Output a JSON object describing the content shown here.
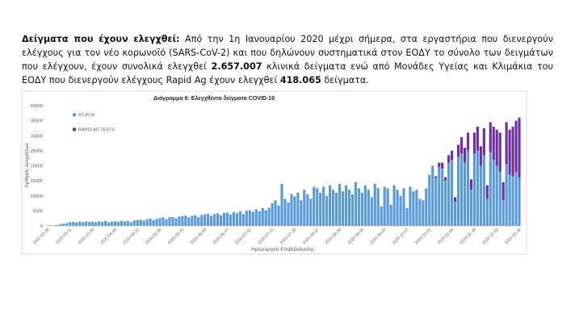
{
  "paragraph": {
    "runs": [
      {
        "text": "Δείγματα που έχουν ελεγχθεί:",
        "bold": true
      },
      {
        "text": " Από την 1η Ιανουαρίου 2020 μέχρι σήμερα, στα εργαστήρια που διενεργούν ελέγχους για τον νέο κορωνοϊό (SARS-CoV-2) και που δηλώνουν συστηματικά στον ΕΟΔΥ το σύνολο των δειγμάτων που ελέγχουν, έχουν συνολικά ελεγχθεί ",
        "bold": false
      },
      {
        "text": "2.657.007",
        "bold": true
      },
      {
        "text": " κλινικά δείγματα ενώ από Μονάδες Υγείας και Κλιμάκια του ΕΟΔΥ που διενεργούν ελέγχους Rapid Ag έχουν ελεγχθεί ",
        "bold": false
      },
      {
        "text": "418.065",
        "bold": true
      },
      {
        "text": " δείγματα.",
        "bold": false
      }
    ]
  },
  "chart_data": {
    "type": "stacked_bar",
    "title": "Διάγραμμα 6: Ελεγχθέντα δείγματα COVID-19",
    "x_label": "Ημερομηνία Επιβεβαίωσης",
    "y_label": "Αριθμός Δειγμάτων",
    "ylim": [
      0,
      40000
    ],
    "yticks": [
      0,
      5000,
      10000,
      15000,
      20000,
      25000,
      30000,
      35000,
      40000
    ],
    "grid": false,
    "legend": "upper-left",
    "categories": [
      "2020-02-26",
      null,
      null,
      null,
      null,
      null,
      null,
      "2020-03-11",
      null,
      null,
      null,
      null,
      null,
      null,
      "2020-03-25",
      null,
      null,
      null,
      null,
      null,
      null,
      "2020-04-08",
      null,
      null,
      null,
      null,
      null,
      null,
      "2020-04-22",
      null,
      null,
      null,
      null,
      null,
      null,
      "2020-05-06",
      null,
      null,
      null,
      null,
      null,
      null,
      "2020-05-20",
      null,
      null,
      null,
      null,
      null,
      null,
      "2020-06-03",
      null,
      null,
      null,
      null,
      null,
      null,
      "2020-06-17",
      null,
      null,
      null,
      null,
      null,
      null,
      "2020-07-01",
      null,
      null,
      null,
      null,
      null,
      null,
      "2020-07-15",
      null,
      null,
      null,
      null,
      null,
      null,
      "2020-07-29",
      null,
      null,
      null,
      null,
      null,
      null,
      "2020-08-12",
      null,
      null,
      null,
      null,
      null,
      null,
      "2020-08-26",
      null,
      null,
      null,
      null,
      null,
      null,
      "2020-09-09",
      null,
      null,
      null,
      null,
      null,
      null,
      "2020-09-23",
      null,
      null,
      null,
      null,
      null,
      null,
      "2020-10-07",
      null,
      null,
      null,
      null,
      null,
      null,
      "2020-10-21",
      null,
      null,
      null,
      null,
      null,
      null,
      "2020-11-04",
      null,
      null,
      null,
      null,
      null,
      null,
      "2020-11-18",
      null,
      null,
      null,
      null,
      null,
      null,
      "2020-12-02",
      null,
      null,
      null,
      null,
      null,
      null,
      "2020-12-16"
    ],
    "series": [
      {
        "name": "RT-PCR",
        "color": "#5b9bd5",
        "values": [
          50,
          80,
          150,
          300,
          500,
          700,
          900,
          1200,
          1300,
          1100,
          1400,
          1200,
          1500,
          1300,
          1400,
          1200,
          1500,
          1300,
          1600,
          1100,
          1400,
          1500,
          1300,
          1700,
          1400,
          1600,
          1200,
          1800,
          1900,
          2000,
          1700,
          2200,
          2400,
          1900,
          2300,
          2600,
          2800,
          2200,
          2900,
          3000,
          2500,
          3100,
          3200,
          3400,
          2800,
          3300,
          3500,
          2900,
          3600,
          3800,
          4000,
          3300,
          3900,
          4200,
          3500,
          4300,
          4400,
          3800,
          4600,
          4200,
          4800,
          3900,
          5000,
          5200,
          4600,
          5500,
          4800,
          5900,
          5200,
          6000,
          7500,
          8500,
          6800,
          14000,
          9000,
          7800,
          10500,
          9800,
          11000,
          8500,
          12000,
          10500,
          9000,
          13000,
          12500,
          11000,
          13000,
          10000,
          13500,
          12000,
          11000,
          14000,
          11500,
          13500,
          12000,
          10500,
          14500,
          12500,
          11000,
          13500,
          12000,
          9500,
          14000,
          12500,
          6500,
          13000,
          12500,
          7000,
          13500,
          12000,
          10000,
          12500,
          6000,
          13000,
          11500,
          12000,
          9000,
          8500,
          12500,
          17000,
          20000,
          16000,
          19500,
          19000,
          15000,
          21000,
          22000,
          8000,
          23000,
          24000,
          21000,
          25000,
          12000,
          24000,
          25000,
          20000,
          23500,
          9000,
          24500,
          22000,
          20000,
          18000,
          8500,
          20500,
          17000,
          16500,
          18000,
          16000
        ]
      },
      {
        "name": "RAPID AG TESTS",
        "color": "#7030a0",
        "values": [
          0,
          0,
          0,
          0,
          0,
          0,
          0,
          0,
          0,
          0,
          0,
          0,
          0,
          0,
          0,
          0,
          0,
          0,
          0,
          0,
          0,
          0,
          0,
          0,
          0,
          0,
          0,
          0,
          0,
          0,
          0,
          0,
          0,
          0,
          0,
          0,
          0,
          0,
          0,
          0,
          0,
          0,
          0,
          0,
          0,
          0,
          0,
          0,
          0,
          0,
          0,
          0,
          0,
          0,
          0,
          0,
          0,
          0,
          0,
          0,
          0,
          0,
          0,
          0,
          0,
          0,
          0,
          0,
          0,
          0,
          0,
          0,
          0,
          0,
          0,
          0,
          0,
          0,
          0,
          0,
          0,
          0,
          0,
          0,
          0,
          0,
          0,
          0,
          0,
          0,
          0,
          0,
          0,
          0,
          0,
          0,
          0,
          0,
          0,
          0,
          0,
          0,
          0,
          0,
          0,
          0,
          0,
          0,
          0,
          0,
          0,
          0,
          0,
          0,
          0,
          0,
          0,
          0,
          0,
          0,
          0,
          500,
          1500,
          2000,
          1200,
          2500,
          3000,
          1500,
          4000,
          5500,
          5000,
          6000,
          3500,
          7000,
          8000,
          6500,
          9000,
          4500,
          10000,
          11000,
          12000,
          13000,
          6000,
          14000,
          15000,
          16500,
          17000,
          20000
        ]
      }
    ]
  }
}
